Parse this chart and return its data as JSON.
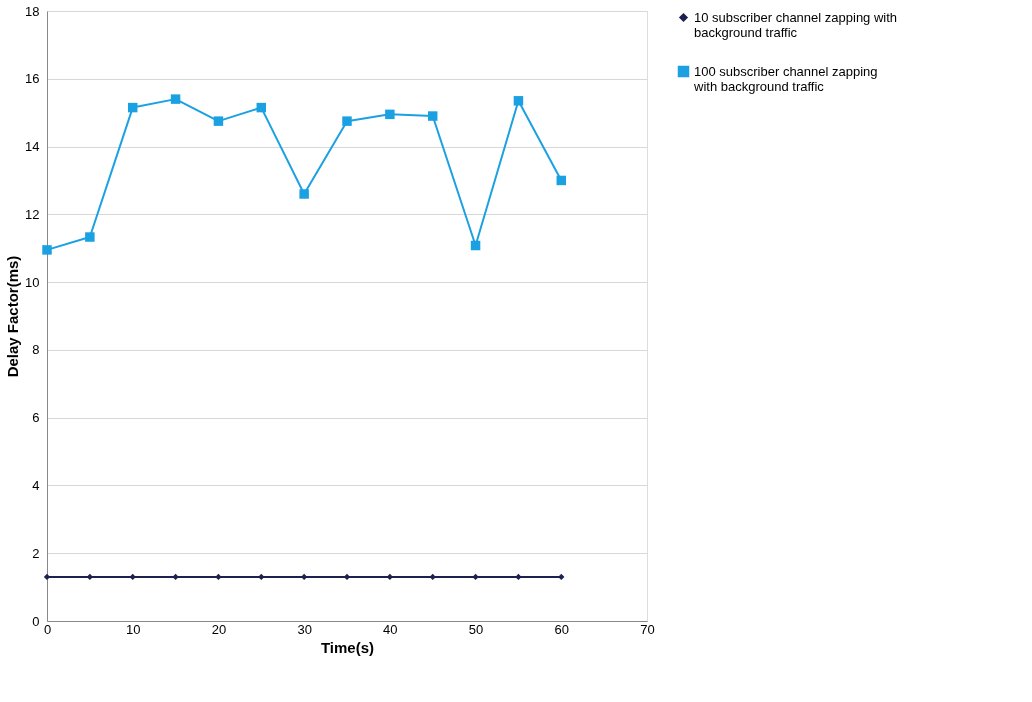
{
  "chart_data": {
    "type": "line",
    "xlabel": "Time(s)",
    "ylabel": "Delay Factor(ms)",
    "xlim": [
      0,
      70
    ],
    "xticks": [
      0,
      10,
      20,
      30,
      40,
      50,
      60,
      70
    ],
    "ylim": [
      0,
      18
    ],
    "yticks": [
      0,
      2,
      4,
      6,
      8,
      10,
      12,
      14,
      16,
      18
    ],
    "grid": "y",
    "legend": "right",
    "x": [
      0,
      5,
      10,
      15,
      20,
      25,
      30,
      35,
      40,
      45,
      50,
      55,
      60
    ],
    "series": [
      {
        "name": "10 subscriber channel zapping with background traffic",
        "color": "#1c2150",
        "marker": "diamond",
        "values": [
          1.3,
          1.3,
          1.3,
          1.3,
          1.3,
          1.3,
          1.3,
          1.3,
          1.3,
          1.3,
          1.3,
          1.3,
          1.3
        ]
      },
      {
        "name": "100 subscriber channel zapping with background traffic",
        "color": "#1ba1e2",
        "marker": "square",
        "values": [
          10.95,
          11.33,
          15.15,
          15.4,
          14.75,
          15.15,
          12.6,
          14.75,
          14.95,
          14.9,
          11.08,
          15.35,
          13.0
        ]
      }
    ]
  }
}
